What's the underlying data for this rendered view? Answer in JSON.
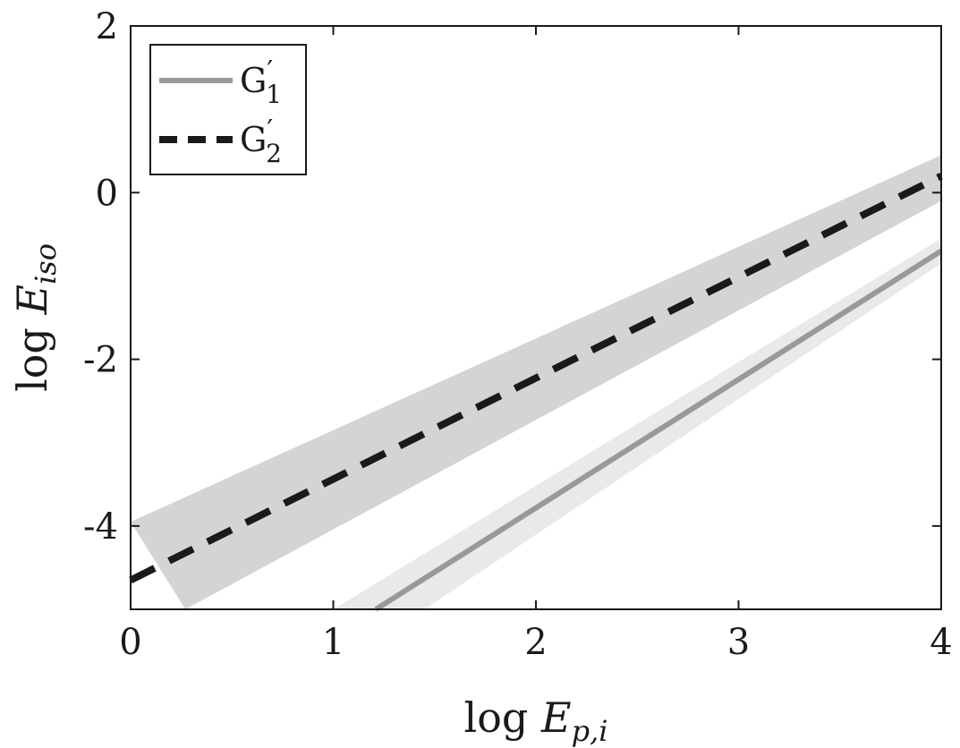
{
  "chart_data": {
    "type": "line",
    "title": "",
    "xlabel": {
      "prefix": "log ",
      "symbol": "E",
      "subscript": "p,i"
    },
    "ylabel": {
      "prefix": "log ",
      "symbol": "E",
      "subscript": "iso"
    },
    "xlim": [
      0,
      4
    ],
    "ylim": [
      -5,
      2
    ],
    "xticks": [
      0,
      1,
      2,
      3,
      4
    ],
    "yticks": [
      -4,
      -2,
      0,
      2
    ],
    "xtick_labels": [
      "0",
      "1",
      "2",
      "3",
      "4"
    ],
    "ytick_labels": [
      "-4",
      "-2",
      "0",
      "2"
    ],
    "grid": false,
    "legend_position": "top-left",
    "series": [
      {
        "name": "G'1",
        "label": {
          "base": "G",
          "prime": "′",
          "sub": "1"
        },
        "style": "solid",
        "color": "#999999",
        "band_color": "#e9e9e9",
        "x": [
          1.21,
          4.0
        ],
        "y": [
          -5.0,
          -0.7
        ],
        "band_upper": [
          [
            1.0,
            -5.0
          ],
          [
            4.0,
            -0.55
          ]
        ],
        "band_lower": [
          [
            1.45,
            -5.0
          ],
          [
            4.0,
            -0.85
          ]
        ]
      },
      {
        "name": "G'2",
        "label": {
          "base": "G",
          "prime": "′",
          "sub": "2"
        },
        "style": "dashed",
        "color": "#1a1a1a",
        "band_color": "#d4d4d4",
        "x": [
          0.0,
          4.0
        ],
        "y": [
          -4.65,
          0.2
        ],
        "band_upper": [
          [
            0.0,
            -3.95
          ],
          [
            4.0,
            0.45
          ]
        ],
        "band_lower": [
          [
            0.27,
            -5.0
          ],
          [
            4.0,
            -0.1
          ]
        ]
      }
    ]
  }
}
